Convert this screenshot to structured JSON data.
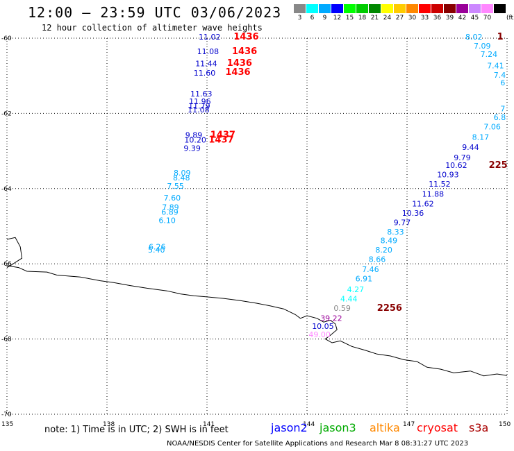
{
  "header": {
    "title": "12:00 — 23:59 UTC 03/06/2023",
    "subtitle": "12 hour collection of altimeter wave heights"
  },
  "legend": {
    "unit": "(ft)",
    "items": [
      {
        "label": "3",
        "color": "#888888"
      },
      {
        "label": "6",
        "color": "#00ffff"
      },
      {
        "label": "9",
        "color": "#00aaff"
      },
      {
        "label": "12",
        "color": "#0000ff"
      },
      {
        "label": "15",
        "color": "#00ff00"
      },
      {
        "label": "18",
        "color": "#00cc00"
      },
      {
        "label": "21",
        "color": "#008800"
      },
      {
        "label": "24",
        "color": "#ffff00"
      },
      {
        "label": "27",
        "color": "#ffcc00"
      },
      {
        "label": "30",
        "color": "#ff8800"
      },
      {
        "label": "33",
        "color": "#ff0000"
      },
      {
        "label": "36",
        "color": "#cc0000"
      },
      {
        "label": "39",
        "color": "#880000"
      },
      {
        "label": "42",
        "color": "#990099"
      },
      {
        "label": "45",
        "color": "#cc88ff"
      },
      {
        "label": "70",
        "color": "#ff88ff"
      },
      {
        "label": "",
        "color": "#000000"
      }
    ]
  },
  "axes": {
    "lat_labels": [
      "-60",
      "-62",
      "-64",
      "-66",
      "-68",
      "-70"
    ],
    "lon_labels": [
      "135",
      "138",
      "141",
      "144",
      "147",
      "150"
    ]
  },
  "tracks": [
    {
      "points": [
        {
          "v": "11.02",
          "lon": 140.75,
          "lat": -60.04,
          "color": "#0000cc"
        },
        {
          "v": "11.08",
          "lon": 140.7,
          "lat": -60.42,
          "color": "#0000cc"
        },
        {
          "v": "11.44",
          "lon": 140.65,
          "lat": -60.75,
          "color": "#0000cc"
        },
        {
          "v": "11.60",
          "lon": 140.6,
          "lat": -61.0,
          "color": "#0000cc"
        },
        {
          "v": "11.63",
          "lon": 140.5,
          "lat": -61.55,
          "color": "#0000cc"
        },
        {
          "v": "11.96",
          "lon": 140.46,
          "lat": -61.75,
          "color": "#0000cc"
        },
        {
          "v": "11.79",
          "lon": 140.44,
          "lat": -61.87,
          "color": "#0000cc"
        },
        {
          "v": "11.08",
          "lon": 140.42,
          "lat": -61.97,
          "color": "#0000cc"
        },
        {
          "v": "9.89",
          "lon": 140.35,
          "lat": -62.65,
          "color": "#0000cc"
        },
        {
          "v": "10.20",
          "lon": 140.32,
          "lat": -62.78,
          "color": "#0000cc"
        },
        {
          "v": "9.39",
          "lon": 140.3,
          "lat": -63.0,
          "color": "#0000cc"
        },
        {
          "v": "8.09",
          "lon": 140.0,
          "lat": -63.65,
          "color": "#00aaff"
        },
        {
          "v": "8.48",
          "lon": 139.98,
          "lat": -63.78,
          "color": "#00aaff"
        },
        {
          "v": "7.55",
          "lon": 139.8,
          "lat": -64.0,
          "color": "#00aaff"
        },
        {
          "v": "7.60",
          "lon": 139.7,
          "lat": -64.32,
          "color": "#00aaff"
        },
        {
          "v": "7.89",
          "lon": 139.65,
          "lat": -64.57,
          "color": "#00aaff"
        },
        {
          "v": "6.89",
          "lon": 139.63,
          "lat": -64.7,
          "color": "#00aaff"
        },
        {
          "v": "6.10",
          "lon": 139.55,
          "lat": -64.92,
          "color": "#00aaff"
        },
        {
          "v": "6.26",
          "lon": 139.25,
          "lat": -65.62,
          "color": "#00aaff"
        },
        {
          "v": "5.40",
          "lon": 139.23,
          "lat": -65.7,
          "color": "#00aaff"
        }
      ],
      "times": [
        {
          "t": "1436",
          "lon": 141.8,
          "lat": -60.04,
          "color": "#ff0000"
        },
        {
          "t": "1436",
          "lon": 141.75,
          "lat": -60.42,
          "color": "#ff0000"
        },
        {
          "t": "1436",
          "lon": 141.6,
          "lat": -60.74,
          "color": "#ff0000"
        },
        {
          "t": "1436",
          "lon": 141.55,
          "lat": -60.98,
          "color": "#ff0000"
        },
        {
          "t": "1437",
          "lon": 141.1,
          "lat": -62.65,
          "color": "#ff0000"
        },
        {
          "t": "1437",
          "lon": 141.05,
          "lat": -62.78,
          "color": "#ff0000"
        }
      ]
    },
    {
      "points": [
        {
          "v": "8.02",
          "lon": 148.75,
          "lat": -60.04,
          "color": "#00aaff"
        },
        {
          "v": "7.09",
          "lon": 149.0,
          "lat": -60.28,
          "color": "#00aaff"
        },
        {
          "v": "7.24",
          "lon": 149.2,
          "lat": -60.5,
          "color": "#00aaff"
        },
        {
          "v": "7.41",
          "lon": 149.4,
          "lat": -60.8,
          "color": "#00aaff"
        },
        {
          "v": "7.4",
          "lon": 149.6,
          "lat": -61.05,
          "color": "#00aaff"
        },
        {
          "v": "6",
          "lon": 149.8,
          "lat": -61.25,
          "color": "#00aaff"
        },
        {
          "v": "7",
          "lon": 149.8,
          "lat": -61.95,
          "color": "#00aaff"
        },
        {
          "v": "6.8",
          "lon": 149.6,
          "lat": -62.18,
          "color": "#00aaff"
        },
        {
          "v": "7.06",
          "lon": 149.3,
          "lat": -62.43,
          "color": "#00aaff"
        },
        {
          "v": "8.17",
          "lon": 148.95,
          "lat": -62.7,
          "color": "#00aaff"
        },
        {
          "v": "9.44",
          "lon": 148.65,
          "lat": -62.97,
          "color": "#0000cc"
        },
        {
          "v": "9.79",
          "lon": 148.4,
          "lat": -63.25,
          "color": "#0000cc"
        },
        {
          "v": "10.62",
          "lon": 148.15,
          "lat": -63.45,
          "color": "#0000cc"
        },
        {
          "v": "10.93",
          "lon": 147.9,
          "lat": -63.7,
          "color": "#0000cc"
        },
        {
          "v": "11.52",
          "lon": 147.65,
          "lat": -63.95,
          "color": "#0000cc"
        },
        {
          "v": "11.88",
          "lon": 147.45,
          "lat": -64.22,
          "color": "#0000cc"
        },
        {
          "v": "11.62",
          "lon": 147.15,
          "lat": -64.47,
          "color": "#0000cc"
        },
        {
          "v": "10.36",
          "lon": 146.85,
          "lat": -64.72,
          "color": "#0000cc"
        },
        {
          "v": "9.77",
          "lon": 146.6,
          "lat": -64.97,
          "color": "#0000cc"
        },
        {
          "v": "8.33",
          "lon": 146.4,
          "lat": -65.22,
          "color": "#00aaff"
        },
        {
          "v": "8.49",
          "lon": 146.2,
          "lat": -65.45,
          "color": "#00aaff"
        },
        {
          "v": "8.20",
          "lon": 146.05,
          "lat": -65.7,
          "color": "#00aaff"
        },
        {
          "v": "8.66",
          "lon": 145.85,
          "lat": -65.95,
          "color": "#00aaff"
        },
        {
          "v": "7.46",
          "lon": 145.65,
          "lat": -66.22,
          "color": "#00aaff"
        },
        {
          "v": "6.91",
          "lon": 145.45,
          "lat": -66.47,
          "color": "#00aaff"
        },
        {
          "v": "4.27",
          "lon": 145.2,
          "lat": -66.75,
          "color": "#00ffff"
        },
        {
          "v": "4.44",
          "lon": 145.0,
          "lat": -67.0,
          "color": "#00ffff"
        },
        {
          "v": "0.59",
          "lon": 144.8,
          "lat": -67.25,
          "color": "#888888"
        },
        {
          "v": "39.22",
          "lon": 144.4,
          "lat": -67.52,
          "color": "#990099"
        },
        {
          "v": "10.05",
          "lon": 144.15,
          "lat": -67.73,
          "color": "#0000cc"
        },
        {
          "v": "49.00",
          "lon": 144.05,
          "lat": -67.95,
          "color": "#ff88ff"
        }
      ],
      "times": [
        {
          "t": "1",
          "lon": 149.7,
          "lat": -60.04,
          "color": "#880000"
        },
        {
          "t": "225",
          "lon": 149.45,
          "lat": -63.45,
          "color": "#880000"
        },
        {
          "t": "2256",
          "lon": 146.1,
          "lat": -67.25,
          "color": "#880000"
        }
      ]
    }
  ],
  "coastline": [
    [
      135.0,
      -65.35
    ],
    [
      135.25,
      -65.3
    ],
    [
      135.4,
      -65.55
    ],
    [
      135.45,
      -65.85
    ],
    [
      135.1,
      -66.05
    ],
    [
      135.0,
      -66.1
    ],
    null,
    [
      135.0,
      -66.05
    ],
    [
      135.35,
      -66.1
    ],
    [
      135.6,
      -66.2
    ],
    [
      136.2,
      -66.22
    ],
    [
      136.5,
      -66.3
    ],
    [
      137.2,
      -66.35
    ],
    [
      137.8,
      -66.45
    ],
    [
      138.2,
      -66.5
    ],
    [
      138.7,
      -66.58
    ],
    [
      139.2,
      -66.65
    ],
    [
      139.8,
      -66.72
    ],
    [
      140.2,
      -66.8
    ],
    [
      140.6,
      -66.85
    ],
    [
      141.0,
      -66.88
    ],
    [
      141.5,
      -66.92
    ],
    [
      142.0,
      -66.98
    ],
    [
      142.5,
      -67.05
    ],
    [
      142.9,
      -67.12
    ],
    [
      143.3,
      -67.2
    ],
    [
      143.65,
      -67.35
    ],
    [
      143.8,
      -67.45
    ],
    [
      144.0,
      -67.38
    ],
    [
      144.3,
      -67.45
    ],
    [
      144.5,
      -67.55
    ],
    [
      144.7,
      -67.5
    ],
    [
      144.85,
      -67.6
    ],
    [
      144.9,
      -67.75
    ],
    [
      144.7,
      -67.9
    ],
    [
      144.55,
      -68.0
    ],
    [
      144.75,
      -68.1
    ],
    [
      145.0,
      -68.05
    ],
    [
      145.35,
      -68.2
    ],
    [
      145.75,
      -68.3
    ],
    [
      146.1,
      -68.4
    ],
    [
      146.5,
      -68.45
    ],
    [
      146.9,
      -68.55
    ],
    [
      147.3,
      -68.6
    ],
    [
      147.6,
      -68.75
    ],
    [
      148.0,
      -68.8
    ],
    [
      148.4,
      -68.9
    ],
    [
      148.9,
      -68.85
    ],
    [
      149.3,
      -68.98
    ],
    [
      149.7,
      -68.93
    ],
    [
      150.0,
      -68.97
    ]
  ],
  "footer": {
    "note": "note: 1) Time is in UTC; 2) SWH is in feet",
    "satellites": [
      {
        "name": "jason2",
        "color": "#0000ff"
      },
      {
        "name": "jason3",
        "color": "#00aa00"
      },
      {
        "name": "altika",
        "color": "#ff8800"
      },
      {
        "name": "cryosat",
        "color": "#ff0000"
      },
      {
        "name": "s3a",
        "color": "#aa0000"
      }
    ],
    "credit": "NOAA/NESDIS Center for Satellite Applications and Research   Mar  8 08:31:27 UTC 2023"
  }
}
